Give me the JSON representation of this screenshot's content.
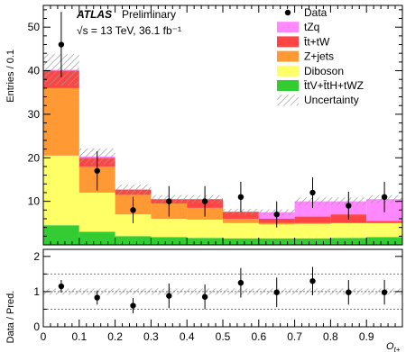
{
  "chart_data": {
    "type": "bar",
    "experiment": "ATLAS",
    "status": "Preliminary",
    "energy_lumi": "√s = 13 TeV, 36.1 fb⁻¹",
    "xlabel": "O_{t+}",
    "ylabel_top": "Entries / 0.1",
    "ylabel_bottom": "Data / Pred.",
    "xlim": [
      0,
      1
    ],
    "ylim_top": [
      0,
      55
    ],
    "ylim_bottom": [
      0,
      2.2
    ],
    "x_ticks": [
      "0",
      "0.1",
      "0.2",
      "0.3",
      "0.4",
      "0.5",
      "0.6",
      "0.7",
      "0.8",
      "0.9"
    ],
    "y_ticks_top": [
      "10",
      "20",
      "30",
      "40",
      "50"
    ],
    "y_ticks_bottom": [
      "0",
      "1",
      "2"
    ],
    "bin_edges": [
      0,
      0.1,
      0.2,
      0.3,
      0.4,
      0.5,
      0.6,
      0.7,
      0.8,
      0.9,
      1.0
    ],
    "series": [
      {
        "name": "t̄tV+t̄tH+tWZ",
        "color": "#33cc33",
        "values": [
          4.5,
          3.0,
          2.0,
          1.8,
          1.6,
          1.5,
          1.5,
          1.5,
          1.6,
          1.8
        ]
      },
      {
        "name": "Diboson",
        "color": "#ffff66",
        "values": [
          16.0,
          9.0,
          5.0,
          4.2,
          4.2,
          3.5,
          3.2,
          3.3,
          3.4,
          3.2
        ]
      },
      {
        "name": "Z+jets",
        "color": "#ff9933",
        "values": [
          15.5,
          6.0,
          4.5,
          3.5,
          2.7,
          1.0,
          0.3,
          0.2,
          0.0,
          0.0
        ]
      },
      {
        "name": "t̄t+tW",
        "color": "#ff4444",
        "values": [
          4.0,
          2.0,
          1.2,
          1.0,
          2.0,
          1.6,
          1.0,
          1.5,
          2.0,
          0.5
        ]
      },
      {
        "name": "tZq",
        "color": "#ff88ff",
        "values": [
          0.2,
          0.3,
          0.0,
          0.0,
          0.0,
          0.0,
          1.5,
          3.5,
          3.0,
          5.0
        ]
      }
    ],
    "uncertainty_fraction": 0.09,
    "data": {
      "name": "Data",
      "x": [
        0.05,
        0.15,
        0.25,
        0.35,
        0.45,
        0.55,
        0.65,
        0.75,
        0.85,
        0.95
      ],
      "y": [
        46,
        17,
        8,
        10,
        10,
        11,
        7,
        12,
        9,
        11
      ],
      "err": [
        7.5,
        4.5,
        3.0,
        3.5,
        3.5,
        3.5,
        3.0,
        3.5,
        3.2,
        3.5
      ]
    },
    "ratio": {
      "x": [
        0.05,
        0.15,
        0.25,
        0.35,
        0.45,
        0.55,
        0.65,
        0.75,
        0.85,
        0.95
      ],
      "y": [
        1.15,
        0.83,
        0.6,
        0.88,
        0.85,
        1.25,
        0.98,
        1.3,
        0.98,
        0.98
      ],
      "err": [
        0.18,
        0.2,
        0.22,
        0.35,
        0.35,
        0.42,
        0.42,
        0.4,
        0.35,
        0.35
      ],
      "band": 0.09
    },
    "legend": {
      "placement": "top-right",
      "entries": [
        {
          "label": "Data",
          "style": "marker"
        },
        {
          "label": "tZq",
          "color": "#ff88ff"
        },
        {
          "label": "t̄t+tW",
          "color": "#ff4444"
        },
        {
          "label": "Z+jets",
          "color": "#ff9933"
        },
        {
          "label": "Diboson",
          "color": "#ffff66"
        },
        {
          "label": "t̄tV+t̄tH+tWZ",
          "color": "#33cc33"
        },
        {
          "label": "Uncertainty",
          "style": "hatch"
        }
      ]
    },
    "ratio_gridlines": [
      0.5,
      1.0,
      1.5
    ]
  }
}
